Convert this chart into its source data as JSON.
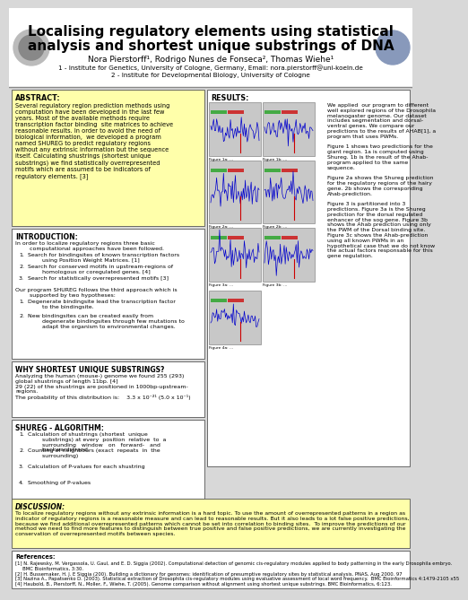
{
  "title_line1": "Localising regulatory elements using statistical",
  "title_line2": "analysis and shortest unique substrings of DNA",
  "author_line": "Nora Pierstorff¹, Rodrigo Nunes de Fonseca², Thomas Wiehe¹",
  "affil1": "1 - Institute for Genetics, University of Cologne, Germany, Email: nora.pierstorff@uni-koeln.de",
  "affil2": "2 - Institute for Developmental Biology, University of Cologne",
  "bg_color": "#d8d8d8",
  "header_bg": "#ffffff",
  "yellow_bg": "#ffffaa",
  "white_bg": "#ffffff",
  "box_border": "#555555",
  "abstract_title": "ABSTRACT:",
  "abstract_text": "Several regulatory region prediction methods using\ncomputation have been developed in the last few\nyears. Most of the available methods require\ntranscription factor binding  site matrices to achieve\nreasonable results. In order to avoid the need of\nbiological information,  we developed a program\nnamed SHUREG to predict regulatory regions\nwithout any extrinsic information but the sequence\nitself. Calculating shustrings (shortest unique\nsubstrings) we find statistically overrepresented\nmotifs which are assumed to be indicators of\nregulatory elements. [3]",
  "intro_title": "INTRODUCTION:",
  "intro_text1": "In order to localize regulatory regions three basic\n        computational approaches have been followed.",
  "intro_items": [
    "Search for bindingsites of known transcription factors\n        using Position Weight Matrices. [1]",
    "Search for conserved motifs in upstream-regions of\n        homologous or coregulated genes. [4]",
    "Search for statistically overrepresented motifs [3]"
  ],
  "intro_text2": "Our program SHUREG follows the third approach which is\n        supported by two hypotheses:",
  "intro_hyp": [
    "Degenerate bindingsite lead the transcription factor\n        to the bindingsite.",
    "New bindingsites can be created easily from\n        degenerate bindingsites through few mutations to\n        adapt the organism to environmental changes."
  ],
  "why_title": "WHY SHORTEST UNIQUE SUBSTRINGS?",
  "why_text": "Analyzing the human (mouse-) genome we found 255 (293)\nglobal shustrings of length 11bp. [4]\n29 (22) of the shustrings are positioned in 1000bp-upstream-\nregions.\nThe probability of this distribution is:    3.3 x 10⁻²¹ (5.0 x 10⁻¹)",
  "algo_title": "SHUREG - ALGORITHM:",
  "algo_items": [
    "Calculation of shustrings (shortest  unique\n        substrings) at every  position  relative  to  a\n        surrounding   window   on   forward-   and\n        backwardstrand.",
    "Counting of neighbours (exact  repeats  in  the\n        surrounding)",
    "Calculation of P-values for each shustring",
    "Smoothing of P-values"
  ],
  "results_title": "RESULTS:",
  "results_text": "We applied  our program to different\nwell explored regions of the Drosophila\nmelanogaster genome. Our dataset\nincludes segmentation and dorsal-\nventral genes. We compare our\npredictions to the results of AHAB[1], a\nprogram that uses PWMs.\n\nFigure 1 shows two predictions for the\ngiant region. 1a is computed using\nShureg. 1b is the result of the Ahab-\nprogram applied to the same\nsequence.\n\nFigure 2a shows the Shureg prediction\nfor the regulatory regions of the hairy\ngene. 2b shows the corresponding\nAhab-prediction.\n\nFigure 3 is partitioned into 3\npredictions. Figure 3a is the Shureg\nprediction for the dorsal regulated\nenhancer of the sog gene. Figure 3b\nshows the Ahab prediction using only\nthe PWM of the Dorsal binding site.\nFigure 3c shows the Ahab-prediction\nusing all known PWMs in an\nhypothetical case that we do not know\nthe actual factors responsable for this\ngene regulation.",
  "discussion_title": "DISCUSSION:",
  "discussion_text": "To localize regulatory regions without any extrinsic information is a hard topic. To use the amount of overrepresented patterns in a region as\nindicator of regulatory regions is a reasonable measure and can lead to reasonable results. But it also leads to a lot false positive predictions,\nbecause we find additional overrepresented patterns which cannot be set into correlation to binding sites.  To improve the predictions of our\nmethod we need to find more features to distinguish between true positive and false positive predictions, we are currently investigating the\nconservation of overrepresented motifs between species.",
  "refs_title": "References:",
  "refs_text": "[1] N. Rajewsky, M. Vergassola, U. Gaul, and E. D. Siggia (2002). Computational detection of genomic cis-regulatory modules applied to body patterning in the early Drosophila embryo.\n     BMC Bioinformatics, 3:30.\n[2] H. Bussemaker, H. J. E Siggia (200). Building a dictionary for genomes: identification of presumptive regulatory sites by statistical analysis. PNAS, Aug 2000. 97\n[3] Nazina A., Papatsenko D. (2003). Statistical extraction of Drosophila cis-regulatory modules using evaluative assessment of local word frequency.  BMC Bioinformatics 4:1479-2105 x55\n[4] Haubold, B., Pierstorff, N., Moller, F., Wiehe, T. (2005). Genome comparison without alignment using shortest unique substrings. BMC Bioinformatics, 6:123."
}
